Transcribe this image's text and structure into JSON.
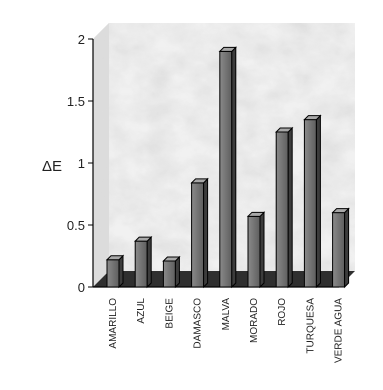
{
  "chart_data": {
    "type": "bar",
    "ylabel": "ΔE",
    "xlabel": "",
    "ylim": [
      0,
      2
    ],
    "yticks": [
      "0",
      "0.5",
      "1",
      "1.5",
      "2"
    ],
    "categories": [
      "AMARILLO",
      "AZUL",
      "BEIGE",
      "DAMASCO",
      "MALVA",
      "MORADO",
      "ROJO",
      "TURQUESA",
      "VERDE AGUA"
    ],
    "values": [
      0.22,
      0.37,
      0.21,
      0.84,
      1.9,
      0.57,
      1.25,
      1.35,
      0.6
    ],
    "grid": false,
    "bar_color": "#6e6e6e",
    "background": "marble-gray"
  }
}
